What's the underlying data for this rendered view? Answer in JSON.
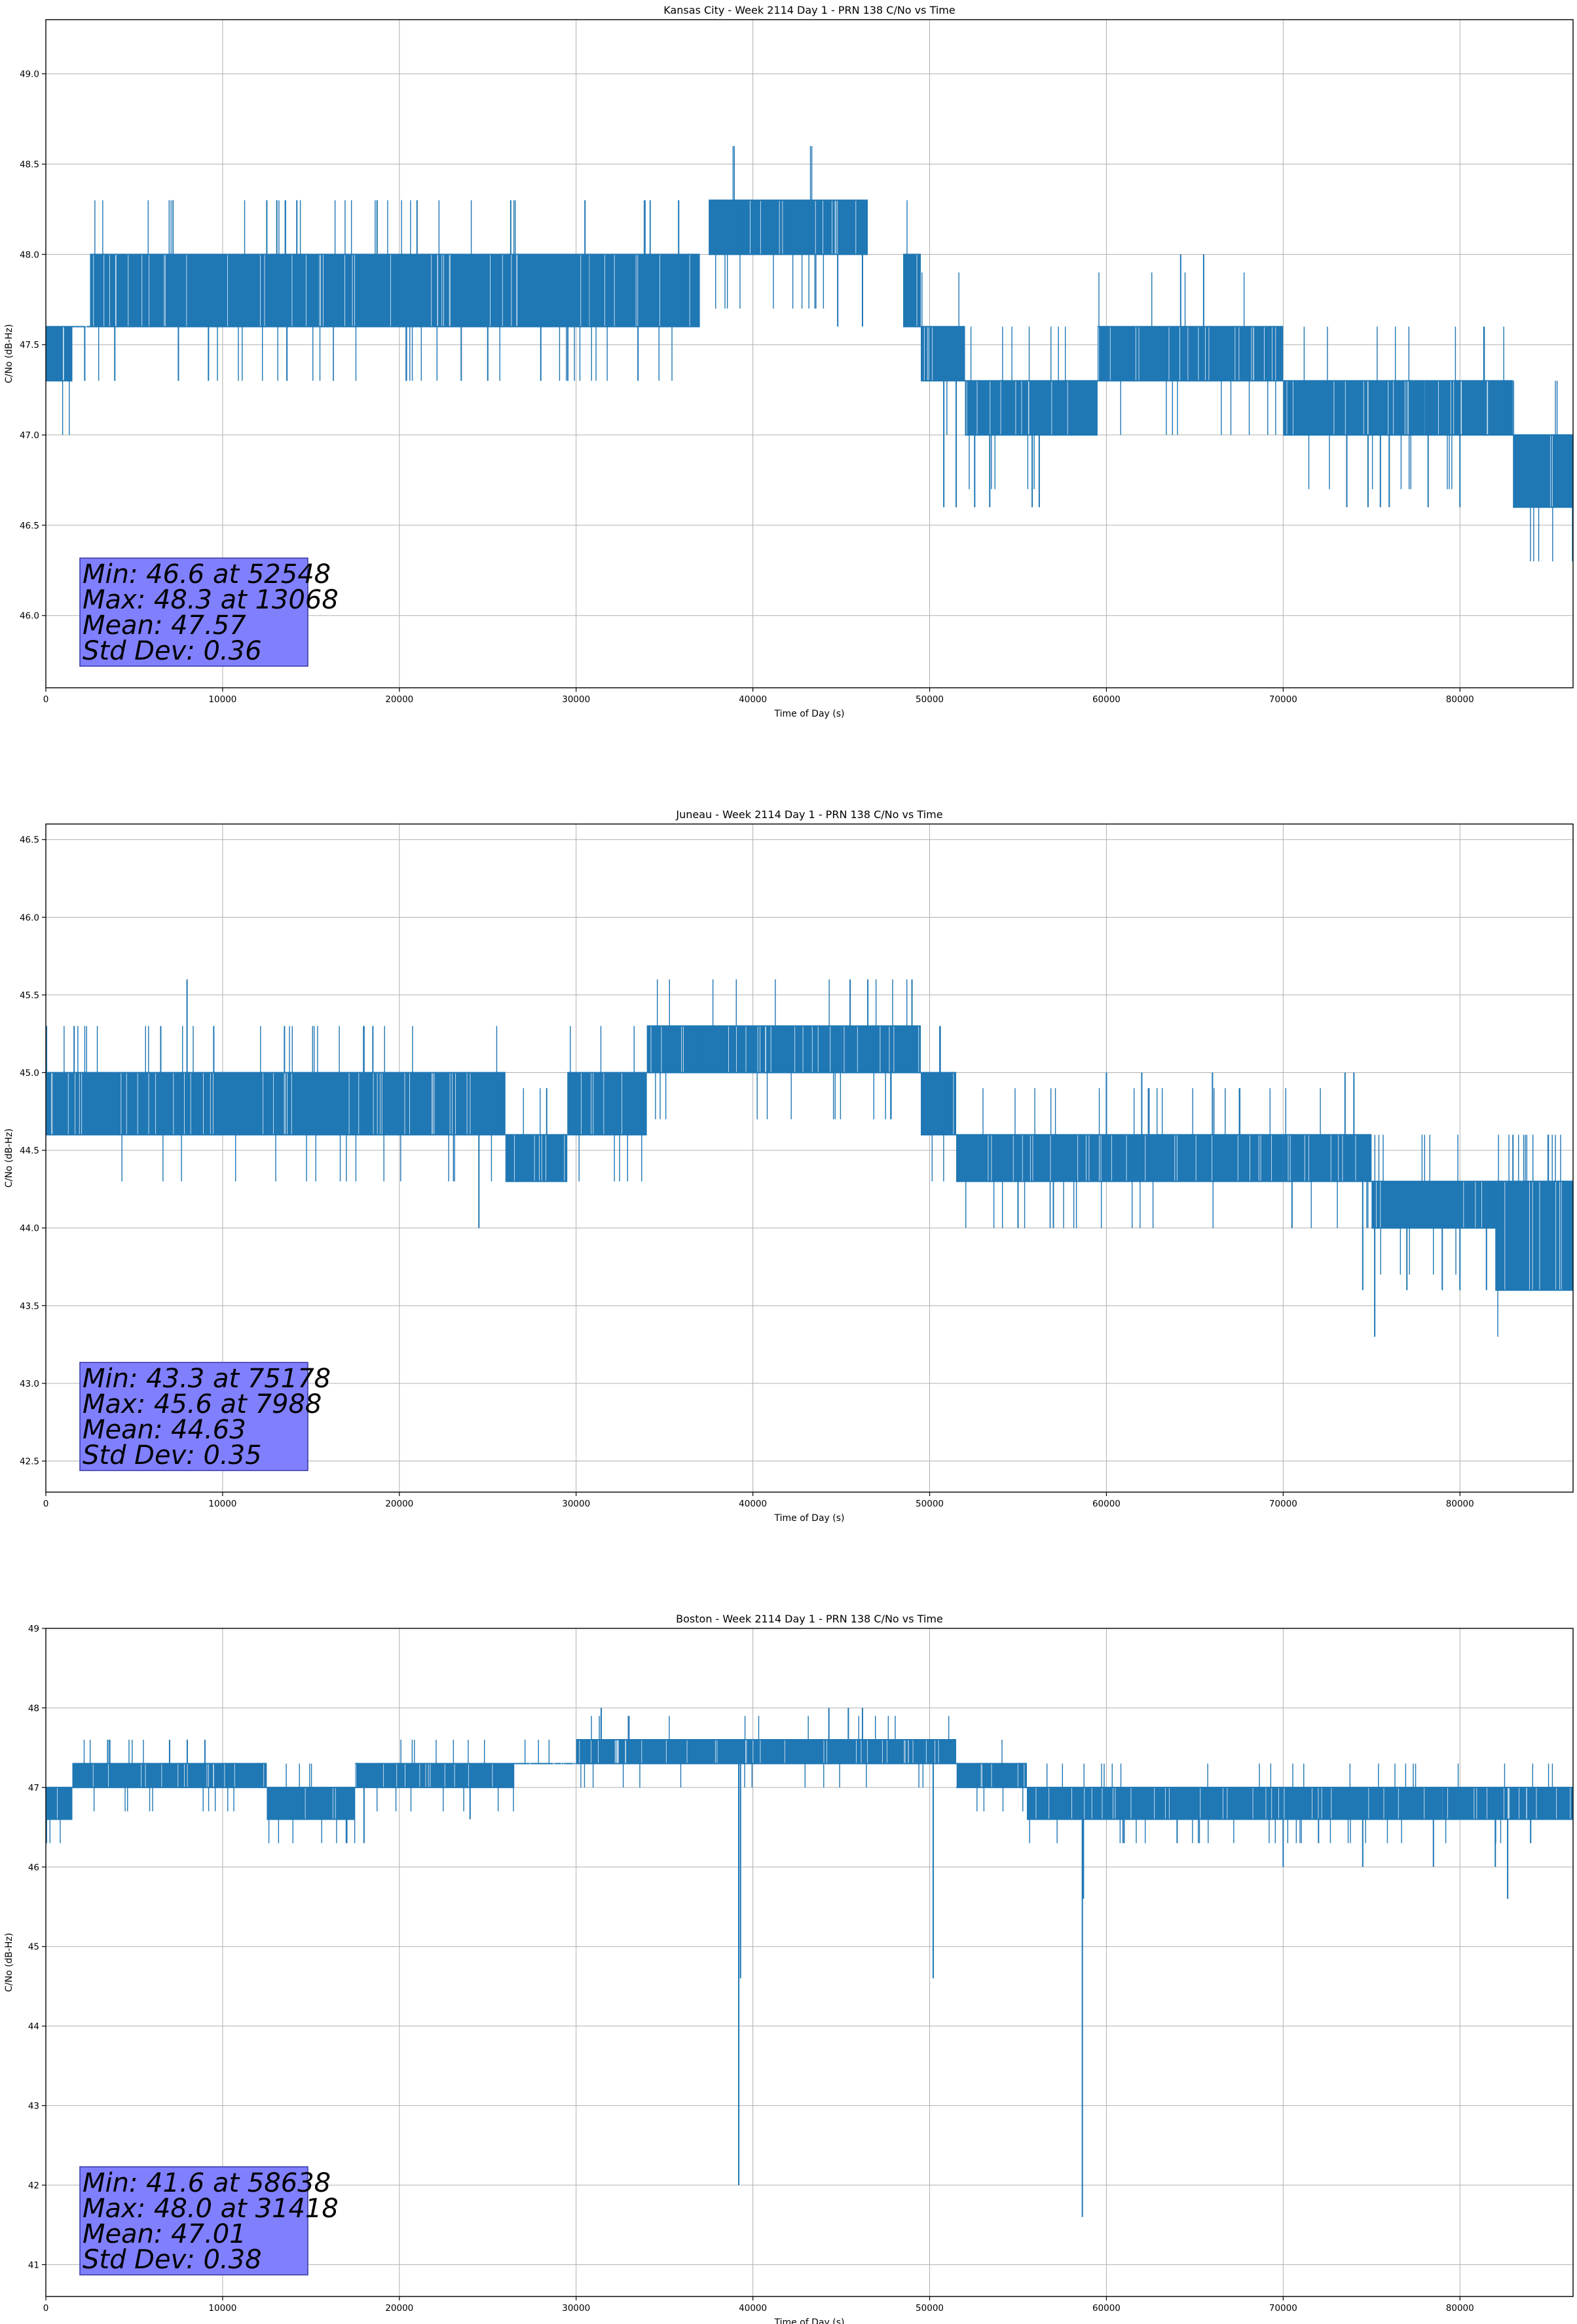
{
  "colors": {
    "series": "#1f77b4",
    "stat_box_fill": "#8080ff",
    "stat_box_edge": "#3535a8",
    "grid": "#b0b0b0"
  },
  "chart_data": [
    {
      "type": "line",
      "title": "Kansas City - Week 2114 Day 1 - PRN 138 C/No vs Time",
      "xlabel": "Time of Day (s)",
      "ylabel": "C/No (dB-Hz)",
      "xlim": [
        0,
        86400
      ],
      "ylim": [
        45.6,
        49.3
      ],
      "xticks": [
        0,
        10000,
        20000,
        30000,
        40000,
        50000,
        60000,
        70000,
        80000
      ],
      "yticks": [
        "46.0",
        "46.5",
        "47.0",
        "47.5",
        "48.0",
        "48.5",
        "49.0"
      ],
      "grid": true,
      "series": [
        {
          "band_segments": [
            {
              "x": [
                0,
                1500
              ],
              "lo": 47.3,
              "hi": 47.6
            },
            {
              "x": [
                1500,
                2500
              ],
              "lo": 47.6,
              "hi": 47.6
            },
            {
              "x": [
                2500,
                37000
              ],
              "lo": 47.6,
              "hi": 48.0
            },
            {
              "x": [
                37500,
                46500
              ],
              "lo": 48.0,
              "hi": 48.3
            },
            {
              "x": [
                48500,
                49500
              ],
              "lo": 47.6,
              "hi": 48.0
            },
            {
              "x": [
                49500,
                52000
              ],
              "lo": 47.3,
              "hi": 47.6
            },
            {
              "x": [
                52000,
                59500
              ],
              "lo": 47.0,
              "hi": 47.3
            },
            {
              "x": [
                59500,
                70000
              ],
              "lo": 47.3,
              "hi": 47.6
            },
            {
              "x": [
                70000,
                78000
              ],
              "lo": 47.0,
              "hi": 47.3
            },
            {
              "x": [
                78000,
                83000
              ],
              "lo": 47.0,
              "hi": 47.3
            },
            {
              "x": [
                83000,
                86400
              ],
              "lo": 46.6,
              "hi": 47.0
            }
          ],
          "spikes": [
            [
              13068,
              48.3
            ],
            [
              12500,
              48.3
            ],
            [
              14200,
              48.3
            ],
            [
              21000,
              48.3
            ],
            [
              26300,
              48.3
            ],
            [
              30500,
              48.3
            ],
            [
              35800,
              48.3
            ],
            [
              39500,
              48.3
            ],
            [
              44800,
              47.6
            ],
            [
              46200,
              47.6
            ],
            [
              44200,
              48.3
            ],
            [
              2200,
              47.3
            ],
            [
              3900,
              47.3
            ],
            [
              7500,
              47.3
            ],
            [
              9200,
              47.3
            ],
            [
              23500,
              47.3
            ],
            [
              25000,
              47.3
            ],
            [
              28000,
              47.3
            ],
            [
              30800,
              48.0
            ],
            [
              33500,
              47.3
            ],
            [
              50800,
              46.6
            ],
            [
              51500,
              46.6
            ],
            [
              53400,
              46.6
            ],
            [
              55800,
              46.6
            ],
            [
              56200,
              46.6
            ],
            [
              64200,
              48.0
            ],
            [
              65500,
              48.0
            ],
            [
              73600,
              46.6
            ],
            [
              74800,
              46.6
            ],
            [
              75500,
              46.6
            ],
            [
              76000,
              46.6
            ],
            [
              52548,
              46.6
            ],
            [
              78200,
              46.6
            ],
            [
              80000,
              46.6
            ],
            [
              86000,
              46.6
            ]
          ]
        }
      ],
      "annotation": [
        "Min: 46.6 at 52548",
        "Max: 48.3 at 13068",
        "Mean: 47.57",
        "Std Dev: 0.36"
      ]
    },
    {
      "type": "line",
      "title": "Juneau - Week 2114 Day 1 - PRN 138 C/No vs Time",
      "xlabel": "Time of Day (s)",
      "ylabel": "C/No (dB-Hz)",
      "xlim": [
        0,
        86400
      ],
      "ylim": [
        42.3,
        46.6
      ],
      "xticks": [
        0,
        10000,
        20000,
        30000,
        40000,
        50000,
        60000,
        70000,
        80000
      ],
      "yticks": [
        "42.5",
        "43.0",
        "43.5",
        "44.0",
        "44.5",
        "45.0",
        "45.5",
        "46.0",
        "46.5"
      ],
      "grid": true,
      "series": [
        {
          "band_segments": [
            {
              "x": [
                0,
                26000
              ],
              "lo": 44.6,
              "hi": 45.0
            },
            {
              "x": [
                26000,
                29500
              ],
              "lo": 44.3,
              "hi": 44.6
            },
            {
              "x": [
                29500,
                34000
              ],
              "lo": 44.6,
              "hi": 45.0
            },
            {
              "x": [
                34000,
                45000
              ],
              "lo": 45.0,
              "hi": 45.3
            },
            {
              "x": [
                45000,
                49500
              ],
              "lo": 45.0,
              "hi": 45.3
            },
            {
              "x": [
                49500,
                51500
              ],
              "lo": 44.6,
              "hi": 45.0
            },
            {
              "x": [
                51500,
                70000
              ],
              "lo": 44.3,
              "hi": 44.6
            },
            {
              "x": [
                70000,
                75000
              ],
              "lo": 44.3,
              "hi": 44.6
            },
            {
              "x": [
                75000,
                86400
              ],
              "lo": 44.0,
              "hi": 44.3
            },
            {
              "x": [
                82000,
                86400
              ],
              "lo": 43.6,
              "hi": 44.3
            }
          ],
          "spikes": [
            [
              7988,
              45.6
            ],
            [
              1600,
              45.3
            ],
            [
              6500,
              45.3
            ],
            [
              9500,
              45.3
            ],
            [
              13500,
              45.3
            ],
            [
              18500,
              45.3
            ],
            [
              24500,
              44.0
            ],
            [
              37000,
              45.3
            ],
            [
              45500,
              45.6
            ],
            [
              46500,
              45.6
            ],
            [
              49000,
              45.6
            ],
            [
              55000,
              44.0
            ],
            [
              57000,
              44.0
            ],
            [
              60000,
              45.0
            ],
            [
              62000,
              45.0
            ],
            [
              66000,
              45.0
            ],
            [
              70500,
              44.0
            ],
            [
              73500,
              45.0
            ],
            [
              74000,
              45.0
            ],
            [
              74500,
              43.6
            ],
            [
              75178,
              43.3
            ],
            [
              77000,
              43.6
            ],
            [
              79000,
              43.6
            ],
            [
              80000,
              43.6
            ],
            [
              81500,
              43.6
            ],
            [
              83000,
              44.6
            ],
            [
              85000,
              44.6
            ]
          ]
        }
      ],
      "annotation": [
        "Min: 43.3 at 75178",
        "Max: 45.6 at 7988",
        "Mean: 44.63",
        "Std Dev: 0.35"
      ]
    },
    {
      "type": "line",
      "title": "Boston - Week 2114 Day 1 - PRN 138 C/No vs Time",
      "xlabel": "Time of Day (s)",
      "ylabel": "C/No (dB-Hz)",
      "xlim": [
        0,
        86400
      ],
      "ylim": [
        40.6,
        49.0
      ],
      "xticks": [
        0,
        10000,
        20000,
        30000,
        40000,
        50000,
        60000,
        70000,
        80000
      ],
      "yticks": [
        "41",
        "42",
        "43",
        "44",
        "45",
        "46",
        "47",
        "48",
        "49"
      ],
      "grid": true,
      "series": [
        {
          "band_segments": [
            {
              "x": [
                0,
                1500
              ],
              "lo": 46.6,
              "hi": 47.0
            },
            {
              "x": [
                1500,
                12500
              ],
              "lo": 47.0,
              "hi": 47.3
            },
            {
              "x": [
                12500,
                17500
              ],
              "lo": 46.6,
              "hi": 47.0
            },
            {
              "x": [
                17500,
                26500
              ],
              "lo": 47.0,
              "hi": 47.3
            },
            {
              "x": [
                26500,
                30000
              ],
              "lo": 47.3,
              "hi": 47.3
            },
            {
              "x": [
                30000,
                51500
              ],
              "lo": 47.3,
              "hi": 47.6
            },
            {
              "x": [
                51500,
                55500
              ],
              "lo": 47.0,
              "hi": 47.3
            },
            {
              "x": [
                55500,
                60000
              ],
              "lo": 46.6,
              "hi": 47.0
            },
            {
              "x": [
                60000,
                79000
              ],
              "lo": 46.6,
              "hi": 47.0
            },
            {
              "x": [
                79000,
                86400
              ],
              "lo": 46.6,
              "hi": 47.0
            }
          ],
          "spikes": [
            [
              3500,
              47.6
            ],
            [
              7000,
              47.6
            ],
            [
              8000,
              47.6
            ],
            [
              9000,
              47.6
            ],
            [
              15000,
              46.6
            ],
            [
              17000,
              46.3
            ],
            [
              18000,
              46.3
            ],
            [
              24000,
              46.6
            ],
            [
              31418,
              48.0
            ],
            [
              39200,
              42.0
            ],
            [
              39300,
              44.6
            ],
            [
              44300,
              48.0
            ],
            [
              45400,
              48.0
            ],
            [
              46200,
              48.0
            ],
            [
              50200,
              44.6
            ],
            [
              58638,
              41.6
            ],
            [
              58700,
              45.6
            ],
            [
              61000,
              46.3
            ],
            [
              64000,
              46.3
            ],
            [
              70000,
              46.0
            ],
            [
              72000,
              46.3
            ],
            [
              74500,
              46.0
            ],
            [
              78500,
              46.0
            ],
            [
              82000,
              46.0
            ],
            [
              82700,
              45.6
            ],
            [
              84000,
              46.3
            ]
          ]
        }
      ],
      "annotation": [
        "Min: 41.6 at 58638",
        "Max: 48.0 at 31418",
        "Mean: 47.01",
        "Std Dev: 0.38"
      ]
    }
  ]
}
